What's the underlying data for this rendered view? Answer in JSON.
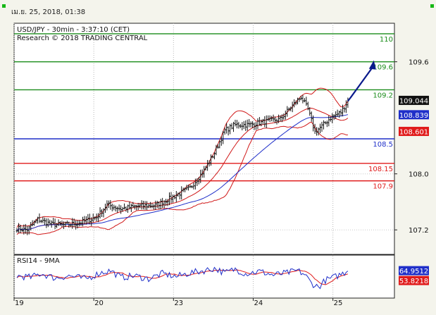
{
  "header": {
    "timestamp": "เม.ย. 25, 2018, 01:38"
  },
  "chart_data": {
    "type": "line",
    "title": "USD/JPY - 30min - 3:37:10 (CET)",
    "subtitle": "Research © 2018 TRADING CENTRAL",
    "ylim": [
      106.85,
      110.15
    ],
    "y_ticks": [
      {
        "value": 107.2,
        "label": "107.2"
      },
      {
        "value": 108.0,
        "label": "108.0"
      },
      {
        "value": 109.6,
        "label": "109.6"
      }
    ],
    "x_days": [
      {
        "label": "19",
        "index": 0
      },
      {
        "label": "20",
        "index": 46
      },
      {
        "label": "23",
        "index": 92
      },
      {
        "label": "24",
        "index": 138
      },
      {
        "label": "25",
        "index": 184
      }
    ],
    "levels": [
      {
        "value": 110.0,
        "label": "110",
        "color": "#1a8c1a"
      },
      {
        "value": 109.6,
        "label": "109.6",
        "color": "#1a8c1a"
      },
      {
        "value": 109.2,
        "label": "109.2",
        "color": "#1a8c1a"
      },
      {
        "value": 108.5,
        "label": "108.5",
        "color": "#1f2fc9"
      },
      {
        "value": 108.15,
        "label": "108.15",
        "color": "#e01b1b"
      },
      {
        "value": 107.9,
        "label": "107.9",
        "color": "#e01b1b"
      }
    ],
    "price_boxes": [
      {
        "value": 109.044,
        "label": "109.044",
        "bg": "#111111",
        "fg": "#ffffff"
      },
      {
        "value": 108.839,
        "label": "108.839",
        "bg": "#1f2fc9",
        "fg": "#ffffff"
      },
      {
        "value": 108.601,
        "label": "108.601",
        "bg": "#e01b1b",
        "fg": "#ffffff"
      }
    ],
    "close_anchors": [
      [
        0,
        107.22
      ],
      [
        6,
        107.2
      ],
      [
        12,
        107.35
      ],
      [
        20,
        107.28
      ],
      [
        28,
        107.27
      ],
      [
        36,
        107.3
      ],
      [
        46,
        107.38
      ],
      [
        52,
        107.56
      ],
      [
        60,
        107.5
      ],
      [
        70,
        107.54
      ],
      [
        80,
        107.55
      ],
      [
        90,
        107.67
      ],
      [
        100,
        107.8
      ],
      [
        108,
        108.05
      ],
      [
        114,
        108.3
      ],
      [
        120,
        108.62
      ],
      [
        126,
        108.7
      ],
      [
        134,
        108.7
      ],
      [
        144,
        108.75
      ],
      [
        152,
        108.78
      ],
      [
        158,
        108.95
      ],
      [
        164,
        109.1
      ],
      [
        168,
        108.92
      ],
      [
        172,
        108.6
      ],
      [
        176,
        108.68
      ],
      [
        181,
        108.8
      ],
      [
        187,
        108.88
      ],
      [
        191,
        109.04
      ]
    ],
    "projection": {
      "from": [
        191,
        109.04
      ],
      "to": [
        206,
        109.62
      ],
      "color": "#0a1a8c"
    },
    "rsi": {
      "title": "RSI14 - 9MA",
      "ylim": [
        0,
        100
      ],
      "values": [
        {
          "value": 64.9512,
          "label": "64.9512",
          "bg": "#1f2fc9"
        },
        {
          "value": 53.8218,
          "label": "53.8218",
          "bg": "#e01b1b"
        }
      ],
      "anchors": [
        [
          0,
          52
        ],
        [
          8,
          48
        ],
        [
          14,
          58
        ],
        [
          22,
          46
        ],
        [
          30,
          52
        ],
        [
          40,
          44
        ],
        [
          48,
          60
        ],
        [
          54,
          66
        ],
        [
          60,
          48
        ],
        [
          68,
          52
        ],
        [
          76,
          44
        ],
        [
          84,
          58
        ],
        [
          92,
          50
        ],
        [
          100,
          60
        ],
        [
          108,
          66
        ],
        [
          114,
          72
        ],
        [
          120,
          60
        ],
        [
          126,
          70
        ],
        [
          132,
          58
        ],
        [
          140,
          64
        ],
        [
          148,
          54
        ],
        [
          156,
          60
        ],
        [
          162,
          66
        ],
        [
          166,
          56
        ],
        [
          170,
          32
        ],
        [
          174,
          22
        ],
        [
          178,
          40
        ],
        [
          184,
          50
        ],
        [
          191,
          65
        ]
      ],
      "colors": {
        "rsi": "#1f2fc9",
        "ma": "#e01b1b"
      }
    }
  }
}
